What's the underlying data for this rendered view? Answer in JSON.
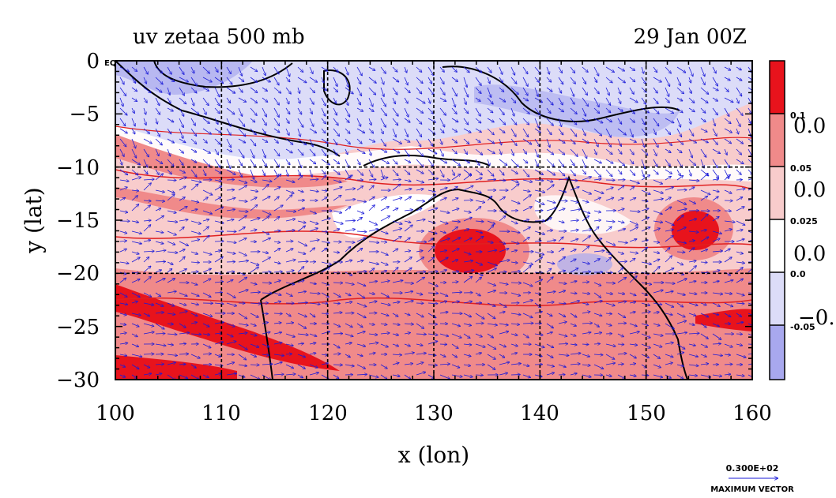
{
  "chart_data": {
    "type": "heatmap",
    "title_left": "uv zetaa 500 mb",
    "title_right": "29 Jan 00Z",
    "xlabel": "x (lon)",
    "ylabel": "y (lat)",
    "xlim": [
      100,
      160
    ],
    "ylim": [
      -30,
      0
    ],
    "x_ticks": [
      100,
      110,
      120,
      130,
      140,
      150,
      160
    ],
    "y_ticks": [
      0,
      -5,
      -10,
      -15,
      -20,
      -25,
      -30
    ],
    "y_tick_labels": [
      "0",
      "−5",
      "−10",
      "−15",
      "−20",
      "−25",
      "−30"
    ],
    "y_top_suffix": "EQ",
    "grid_lon": [
      110,
      120,
      130,
      140,
      150
    ],
    "grid_lat": [
      -10,
      -20
    ],
    "colorbar": {
      "bins": [
        {
          "color": "#e8131c"
        },
        {
          "color": "#f08a8a"
        },
        {
          "color": "#f8cccc"
        },
        {
          "color": "#ffffff"
        },
        {
          "color": "#dcdcf8"
        },
        {
          "color": "#a8a8ee"
        }
      ],
      "small_labels": [
        "0.1",
        "0.05",
        "0.025",
        "0.0",
        "-0.05"
      ],
      "big_labels": [
        "0.0",
        "0.0",
        "0.0",
        "−0."
      ]
    },
    "vector_legend": {
      "value": "0.300E+02",
      "label": "MAXIMUM VECTOR"
    },
    "colors": {
      "red": "#e8131c",
      "mid_red": "#f08a8a",
      "light_red": "#f8cccc",
      "light_blue": "#dcdcf8",
      "blue": "#a8a8ee",
      "vector": "#1a1ad8",
      "contour": "#e02020",
      "coast": "#000000"
    }
  }
}
